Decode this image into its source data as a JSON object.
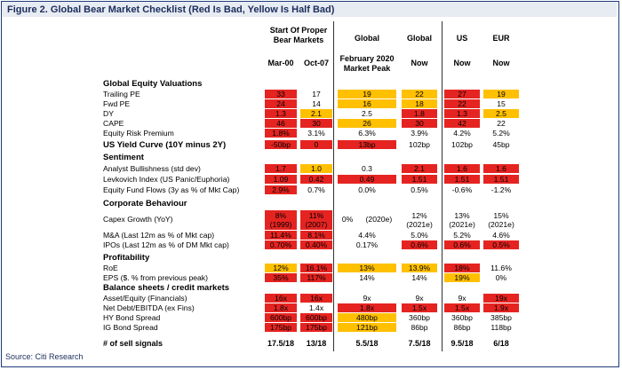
{
  "title": "Figure 2. Global Bear Market Checklist (Red Is Bad, Yellow Is Half Bad)",
  "source": "Source: Citi Research",
  "headers": {
    "group_start": "Start Of Proper Bear Markets",
    "mar00": "Mar-00",
    "oct07": "Oct-07",
    "global_feb": "Global",
    "global_feb_sub": "February 2020 Market Peak",
    "global_now": "Global",
    "global_now_sub": "Now",
    "us": "US",
    "us_sub": "Now",
    "eur": "EUR",
    "eur_sub": "Now"
  },
  "sections": {
    "valuations": "Global Equity Valuations",
    "yield_curve": "US Yield Curve (10Y minus 2Y)",
    "sentiment": "Sentiment",
    "corporate": "Corporate Behaviour",
    "profitability": "Profitability",
    "balance": "Balance sheets / credit markets"
  },
  "rows": {
    "trailing_pe": {
      "label": "Trailing PE",
      "mar00": "33",
      "oct07": "17",
      "feb20": "19",
      "gnow": "22",
      "us": "27",
      "eur": "19"
    },
    "fwd_pe": {
      "label": "Fwd PE",
      "mar00": "24",
      "oct07": "14",
      "feb20": "16",
      "gnow": "18",
      "us": "22",
      "eur": "15"
    },
    "dy": {
      "label": "DY",
      "mar00": "1.3",
      "oct07": "2.1",
      "feb20": "2.5",
      "gnow": "1.8",
      "us": "1.3",
      "eur": "2.5"
    },
    "cape": {
      "label": "CAPE",
      "mar00": "46",
      "oct07": "30",
      "feb20": "26",
      "gnow": "30",
      "us": "42",
      "eur": "22"
    },
    "erp": {
      "label": "Equity Risk Premium",
      "mar00": "1.8%",
      "oct07": "3.1%",
      "feb20": "6.3%",
      "gnow": "3.9%",
      "us": "4.2%",
      "eur": "5.2%"
    },
    "yield": {
      "mar00": "-50bp",
      "oct07": "0",
      "feb20": "13bp",
      "gnow": "102bp",
      "us": "102bp",
      "eur": "45bp"
    },
    "analyst": {
      "label": "Analyst Bullishness (std dev)",
      "mar00": "1.7",
      "oct07": "1.0",
      "feb20": "0.3",
      "gnow": "2.1",
      "us": "1.6",
      "eur": "1.6"
    },
    "levkovich": {
      "label": "Levkovich Index (US Panic/Euphoria)",
      "mar00": "1.09",
      "oct07": "0.42",
      "feb20": "0.49",
      "gnow": "1.51",
      "us": "1.51",
      "eur": "1.51"
    },
    "fund_flows": {
      "label": "Equity Fund Flows (3y as % of Mkt Cap)",
      "mar00": "2.9%",
      "oct07": "0.7%",
      "feb20": "0.0%",
      "gnow": "0.5%",
      "us": "-0.6%",
      "eur": "-1.2%"
    },
    "capex": {
      "label": "Capex Growth (YoY)",
      "mar00_a": "8%",
      "mar00_b": "(1999)",
      "oct07_a": "11%",
      "oct07_b": "(2007)",
      "feb20": "0%      (2020e)",
      "gnow_a": "12%",
      "gnow_b": "(2021e)",
      "us_a": "13%",
      "us_b": "(2021e)",
      "eur_a": "15%",
      "eur_b": "(2021e)"
    },
    "ma": {
      "label": "M&A (Last 12m as % of Mkt cap)",
      "mar00": "11.4%",
      "oct07": "8.1%",
      "feb20": "4.4%",
      "gnow": "5.0%",
      "us": "5.2%",
      "eur": "4.6%"
    },
    "ipos": {
      "label": "IPOs (Last 12m as % of DM Mkt cap)",
      "mar00": "0.70%",
      "oct07": "0.40%",
      "feb20": "0.17%",
      "gnow": "0.6%",
      "us": "0.6%",
      "eur": "0.5%"
    },
    "roe": {
      "label": "RoE",
      "mar00": "12%",
      "oct07": "16.1%",
      "feb20": "13%",
      "gnow": "13.9%",
      "us": "18%",
      "eur": "11.6%"
    },
    "eps": {
      "label": "EPS  ($. % from previous peak)",
      "mar00": "35%",
      "oct07": "117%",
      "feb20": "14%",
      "gnow": "14%",
      "us": "19%",
      "eur": "0%"
    },
    "asset_eq": {
      "label": "Asset/Equity (Financials)",
      "mar00": "16x",
      "oct07": "16x",
      "feb20": "9x",
      "gnow": "9x",
      "us": "9x",
      "eur": "19x"
    },
    "net_debt": {
      "label": "Net Debt/EBITDA (ex Fins)",
      "mar00": "1.8x",
      "oct07": "1.4x",
      "feb20": "1.8x",
      "gnow": "1.5x",
      "us": "1.5x",
      "eur": "1.9x"
    },
    "hy": {
      "label": "HY Bond Spread",
      "mar00": "600bp",
      "oct07": "600bp",
      "feb20": "480bp",
      "gnow": "360bp",
      "us": "360bp",
      "eur": "385bp"
    },
    "ig": {
      "label": "IG Bond Spread",
      "mar00": "175bp",
      "oct07": "175bp",
      "feb20": "121bp",
      "gnow": "86bp",
      "us": "86bp",
      "eur": "118bp"
    }
  },
  "sell_signals": {
    "label": "# of sell signals",
    "mar00": "17.5/18",
    "oct07": "13/18",
    "feb20": "5.5/18",
    "gnow": "7.5/18",
    "us": "9.5/18",
    "eur": "6/18"
  },
  "colors": {
    "red": "#e52421",
    "yellow": "#ffc000",
    "navy": "#1f3b7a"
  }
}
